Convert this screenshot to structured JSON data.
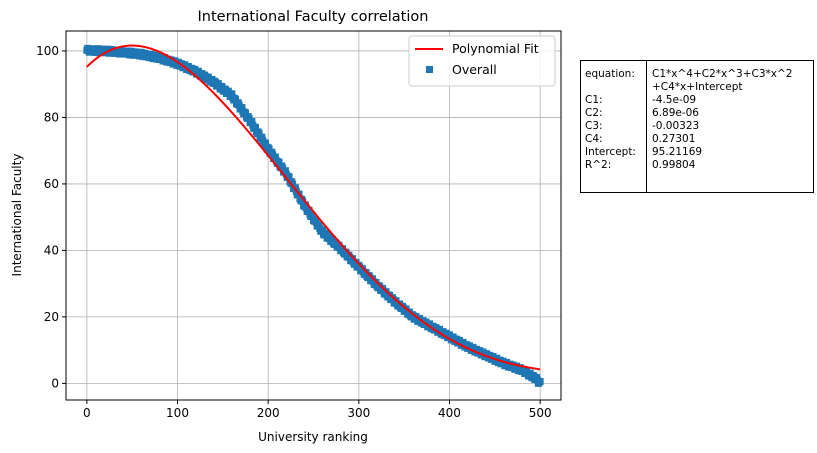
{
  "chart_data": {
    "type": "scatter",
    "title": "International Faculty correlation",
    "xlabel": "University ranking",
    "ylabel": "International Faculty",
    "xlim": [
      -23,
      523
    ],
    "ylim": [
      -5,
      106
    ],
    "x_ticks": [
      "0",
      "100",
      "200",
      "300",
      "400",
      "500"
    ],
    "y_ticks": [
      "0",
      "20",
      "40",
      "60",
      "80",
      "100"
    ],
    "grid": true,
    "legend_position": "top-right",
    "series": [
      {
        "name": "Overall",
        "kind": "scatter",
        "color": "#1f77b4",
        "marker": "square",
        "x_start": 0,
        "x_end": 500,
        "profile_x": [
          0,
          20,
          40,
          60,
          80,
          100,
          120,
          140,
          160,
          180,
          200,
          220,
          240,
          260,
          280,
          300,
          320,
          340,
          360,
          380,
          400,
          420,
          440,
          460,
          480,
          495,
          500
        ],
        "profile_y": [
          100.2,
          100.0,
          99.6,
          99.0,
          97.9,
          96.2,
          93.8,
          90.6,
          86.5,
          79.0,
          70.5,
          63.0,
          53.5,
          45.5,
          40.5,
          35.0,
          29.5,
          24.5,
          20.0,
          17.0,
          14.0,
          11.0,
          8.5,
          6.0,
          4.0,
          1.5,
          0.0
        ]
      },
      {
        "name": "Polynomial Fit",
        "kind": "line",
        "color": "#ff0000",
        "coefficients": {
          "C1": -4.5e-09,
          "C2": 6.89e-06,
          "C3": -0.00323,
          "C4": 0.27301,
          "Intercept": 95.21169
        },
        "x_range": [
          0,
          500
        ]
      }
    ]
  },
  "fit_table": {
    "rows": [
      {
        "label": "equation:",
        "value": "C1*x^4+C2*x^3+C3*x^2"
      },
      {
        "label": "",
        "value": "+C4*x+Intercept"
      },
      {
        "label": "C1:",
        "value": "-4.5e-09"
      },
      {
        "label": "C2:",
        "value": "6.89e-06"
      },
      {
        "label": "C3:",
        "value": "-0.00323"
      },
      {
        "label": "C4:",
        "value": "0.27301"
      },
      {
        "label": "Intercept:",
        "value": "95.21169"
      },
      {
        "label": "R^2:",
        "value": "0.99804"
      }
    ]
  }
}
